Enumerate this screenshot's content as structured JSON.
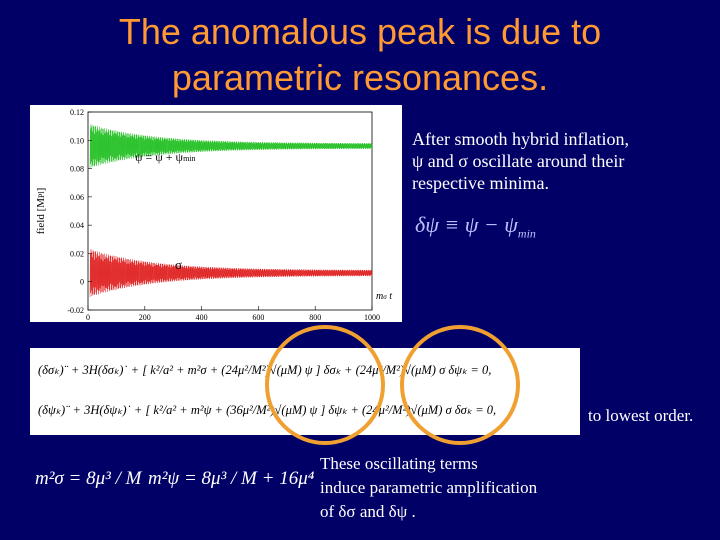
{
  "title": [
    "The anomalous peak is due to",
    "parametric resonances."
  ],
  "plot": {
    "ylabel": "field [M",
    "ylabel_sub": "Pl",
    "ylabel_end": "]",
    "xlabel": "m",
    "xlabel_sub": "σ",
    "xlabel_end": " t",
    "yticks": [
      "0.12",
      "0.10",
      "0.08",
      "0.06",
      "0.04",
      "0.02",
      "0",
      "-0.02"
    ],
    "xticks": [
      "0",
      "200",
      "400",
      "600",
      "800",
      "1000"
    ],
    "psi_label": "ψ = ψ + ψ",
    "psi_label_sub": "min",
    "sigma_label": "σ"
  },
  "description": [
    "After smooth hybrid inflation,",
    "ψ and σ oscillate around their",
    "respective minima."
  ],
  "definition": {
    "lhs": "δψ ≡ ψ − ψ",
    "sub": "min"
  },
  "equations": [
    "(δσₖ)¨ + 3H(δσₖ)˙ + [ k²/a² + m²σ + (24μ²/M²)√(μM) ψ ] δσₖ + (24μ²/M²)√(μM) σ δψₖ = 0,",
    "(δψₖ)¨ + 3H(δψₖ)˙ + [ k²/a² + m²ψ + (36μ²/M²)√(μM) ψ ] δψₖ + (24μ²/M²)√(μM) σ δσₖ = 0,"
  ],
  "order_note": "to lowest order.",
  "masses": [
    "m²σ = 8μ³ / M",
    "m²ψ = 8μ³ / M + 16μ⁴"
  ],
  "conclusion": [
    "These oscillating terms",
    "induce parametric amplification",
    "of  δσ  and  δψ ."
  ]
}
